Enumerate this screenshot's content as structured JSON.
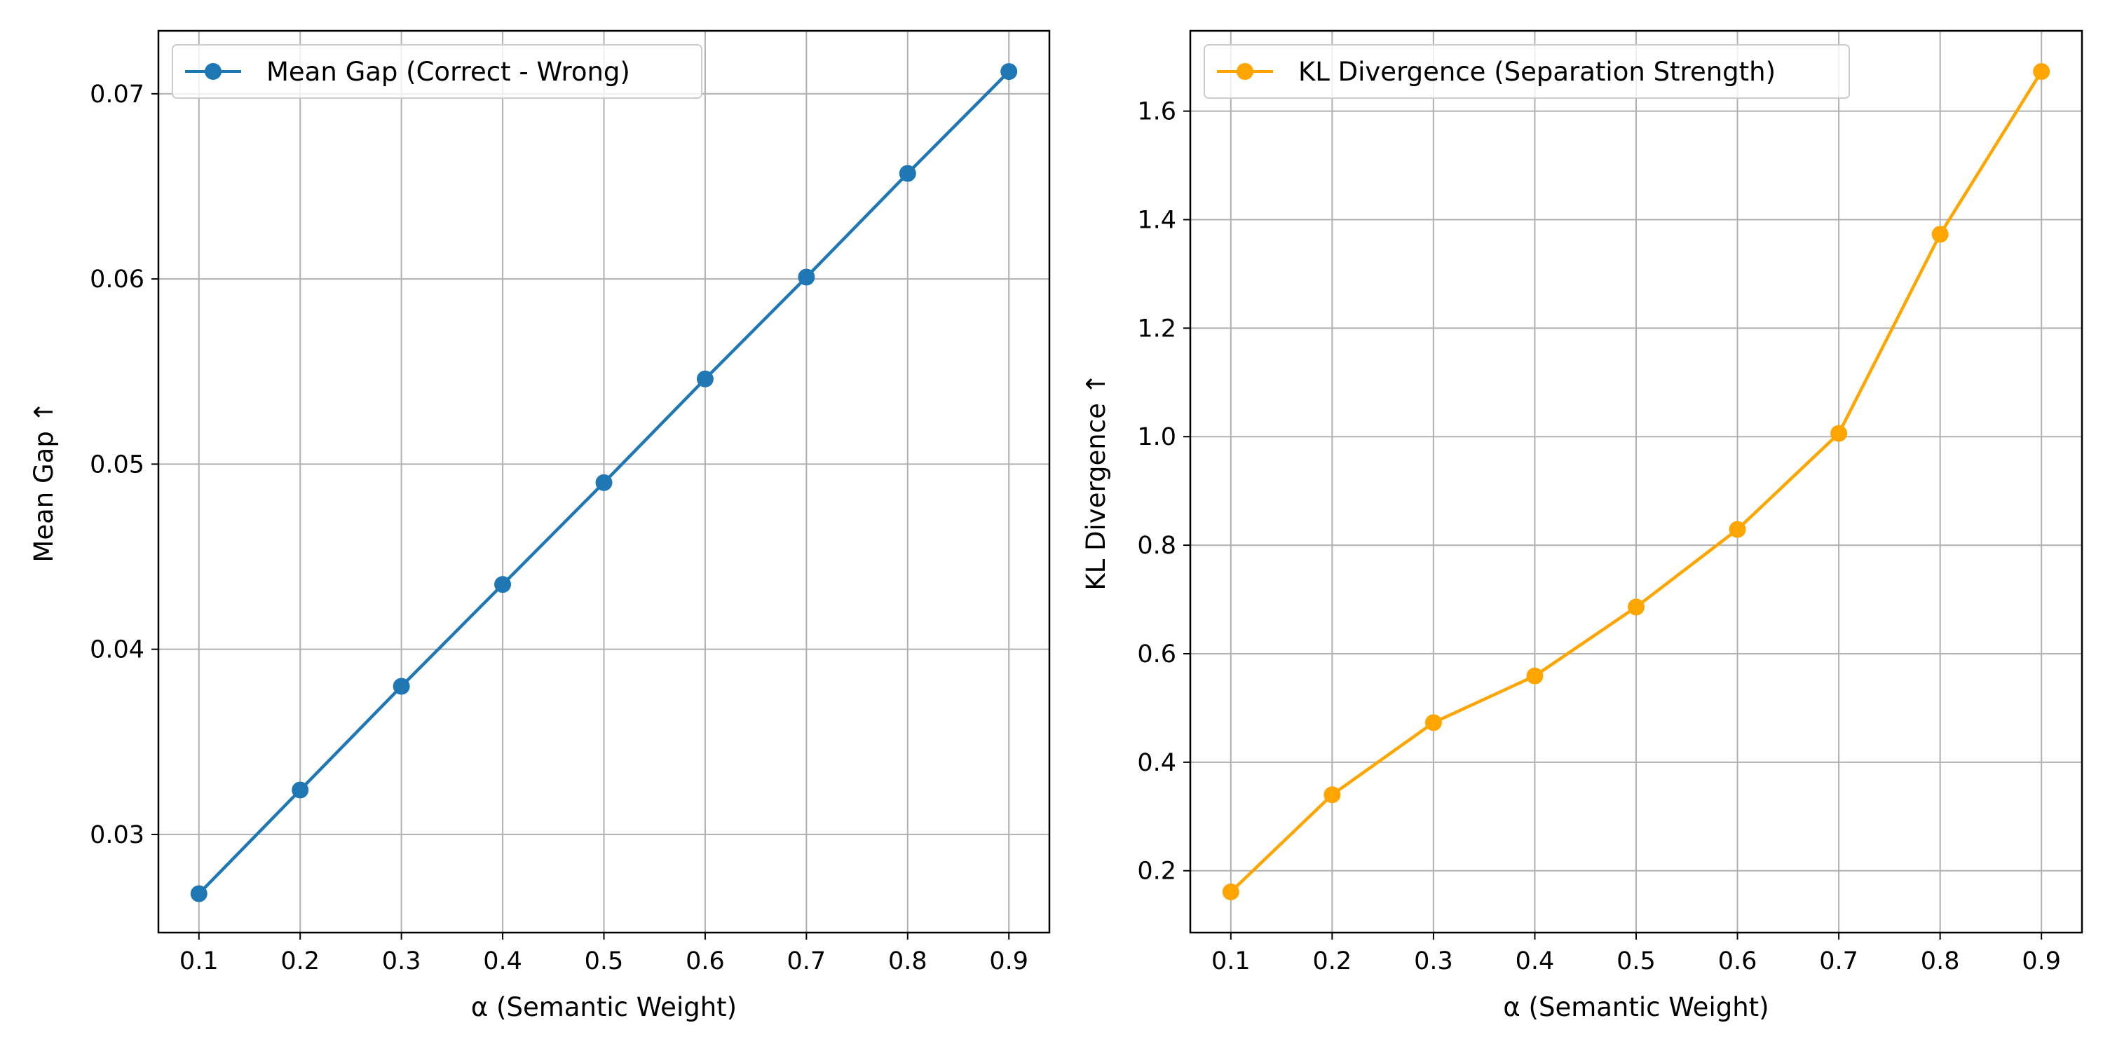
{
  "chart_data": [
    {
      "type": "line",
      "xlabel": "α (Semantic Weight)",
      "ylabel": "Mean Gap ↑",
      "x": [
        0.1,
        0.2,
        0.3,
        0.4,
        0.5,
        0.6,
        0.7,
        0.8,
        0.9
      ],
      "xticks": [
        "0.1",
        "0.2",
        "0.3",
        "0.4",
        "0.5",
        "0.6",
        "0.7",
        "0.8",
        "0.9"
      ],
      "yticks": [
        "0.03",
        "0.04",
        "0.05",
        "0.06",
        "0.07"
      ],
      "xlim": [
        0.06,
        0.94
      ],
      "ylim": [
        0.0247,
        0.0734
      ],
      "grid": true,
      "legend_position": "upper-left",
      "series": [
        {
          "name": "Mean Gap (Correct - Wrong)",
          "color": "#1f77b4",
          "marker": "circle",
          "values": [
            0.0268,
            0.0324,
            0.038,
            0.0435,
            0.049,
            0.0546,
            0.0601,
            0.0657,
            0.0712
          ]
        }
      ]
    },
    {
      "type": "line",
      "xlabel": "α (Semantic Weight)",
      "ylabel": "KL Divergence ↑",
      "x": [
        0.1,
        0.2,
        0.3,
        0.4,
        0.5,
        0.6,
        0.7,
        0.8,
        0.9
      ],
      "xticks": [
        "0.1",
        "0.2",
        "0.3",
        "0.4",
        "0.5",
        "0.6",
        "0.7",
        "0.8",
        "0.9"
      ],
      "yticks": [
        "0.2",
        "0.4",
        "0.6",
        "0.8",
        "1.0",
        "1.2",
        "1.4",
        "1.6"
      ],
      "xlim": [
        0.06,
        0.94
      ],
      "ylim": [
        0.086,
        1.748
      ],
      "grid": true,
      "legend_position": "upper-left",
      "series": [
        {
          "name": "KL Divergence (Separation Strength)",
          "color": "#ffa500",
          "marker": "circle",
          "values": [
            0.161,
            0.34,
            0.473,
            0.559,
            0.686,
            0.829,
            1.006,
            1.373,
            1.673
          ]
        }
      ]
    }
  ]
}
